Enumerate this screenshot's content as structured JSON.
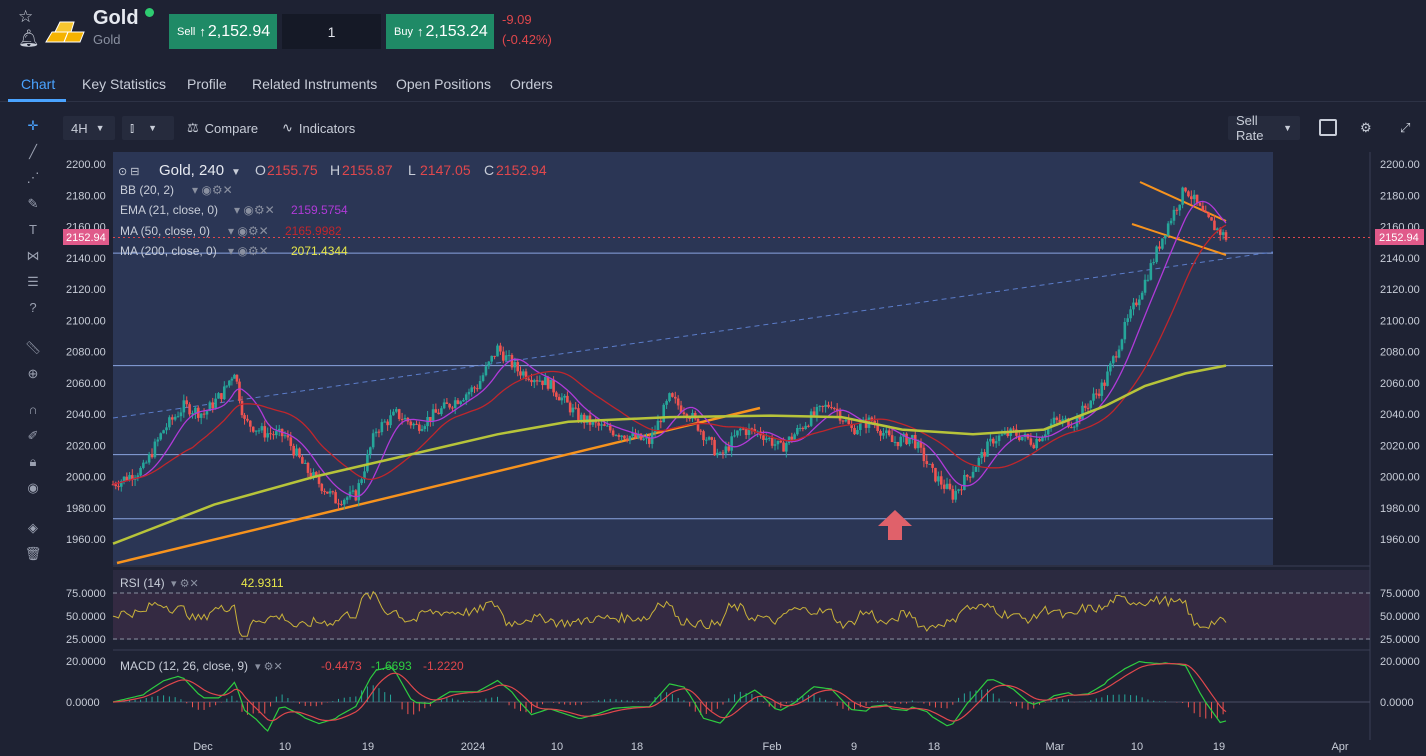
{
  "instrument": {
    "name": "Gold",
    "subtitle": "Gold",
    "status_color": "#2ecc71"
  },
  "trade": {
    "sell_label": "Sell",
    "sell_price": "2,152.94",
    "quantity": "1",
    "buy_label": "Buy",
    "buy_price": "2,153.24",
    "change": "-9.09",
    "change_pct": "(-0.42%)",
    "arrow_icon": "up-arrow-icon"
  },
  "tabs": [
    "Chart",
    "Key Statistics",
    "Profile",
    "Related Instruments",
    "Open Positions",
    "Orders"
  ],
  "toolbar": {
    "interval": "4H",
    "compare": "Compare",
    "indicators": "Indicators",
    "rate_mode": "Sell Rate"
  },
  "legend": {
    "symbol": "Gold, 240",
    "o_label": "O",
    "o": "2155.75",
    "h_label": "H",
    "h": "2155.87",
    "l_label": "L",
    "l": "2147.05",
    "c_label": "C",
    "c": "2152.94",
    "bb": "BB (20, 2)",
    "ema": "EMA (21, close, 0)",
    "ema_value": "2159.5754",
    "ma50": "MA (50, close, 0)",
    "ma50_value": "2165.9982",
    "ma200": "MA (200, close, 0)",
    "ma200_value": "2071.4344",
    "current_price_tag": "2152.94"
  },
  "rsi": {
    "label": "RSI (14)",
    "value": "42.9311",
    "ticks": [
      "75.0000",
      "50.0000",
      "25.0000"
    ]
  },
  "macd": {
    "label": "MACD (12, 26, close, 9)",
    "v1": "-0.4473",
    "v2": "-1.6693",
    "v3": "-1.2220",
    "ticks": [
      "20.0000",
      "0.0000"
    ]
  },
  "colors": {
    "bull": "#26a69a",
    "bear": "#ef5350",
    "ema": "#b03ad8",
    "ma50": "#c0262c",
    "ma200": "#b7c43a",
    "trend": "#f7931e",
    "accent": "#4aa3ff"
  },
  "chart_data": {
    "type": "line",
    "title": "Gold, 240",
    "x_tick_labels": [
      "Dec",
      "10",
      "19",
      "2024",
      "10",
      "18",
      "Feb",
      "9",
      "18",
      "Mar",
      "10",
      "19",
      "Apr"
    ],
    "y_tick_labels": [
      "2200.00",
      "2180.00",
      "2160.00",
      "2140.00",
      "2120.00",
      "2100.00",
      "2080.00",
      "2060.00",
      "2040.00",
      "2020.00",
      "2000.00",
      "1980.00",
      "1960.00"
    ],
    "ylim": [
      1947,
      2203
    ],
    "series": [
      {
        "name": "Gold, 240",
        "x": [
          0,
          3,
          5,
          7,
          9,
          11,
          12,
          13,
          15,
          17,
          19,
          22,
          24,
          26,
          28,
          30,
          33,
          36,
          38,
          40,
          43,
          46,
          48,
          50,
          53,
          55,
          57,
          60,
          62,
          64,
          66,
          69,
          71,
          73,
          75,
          77,
          79,
          81,
          83,
          85,
          87,
          89,
          91,
          93,
          95,
          98,
          100,
          102,
          104,
          106,
          108,
          110
        ],
        "values": [
          1995,
          2005,
          2030,
          2045,
          2040,
          2055,
          2068,
          2035,
          2028,
          2026,
          2005,
          1985,
          1988,
          2030,
          2040,
          2032,
          2045,
          2058,
          2082,
          2068,
          2060,
          2038,
          2032,
          2028,
          2022,
          2050,
          2040,
          2012,
          2030,
          2028,
          2018,
          2038,
          2047,
          2030,
          2036,
          2022,
          2025,
          2002,
          1988,
          2005,
          2024,
          2028,
          2022,
          2035,
          2035,
          2060,
          2095,
          2125,
          2158,
          2185,
          2165,
          2153
        ]
      },
      {
        "name": "MA (200, close, 0)",
        "x": [
          0,
          10,
          20,
          30,
          38,
          45,
          55,
          65,
          72,
          78,
          85,
          92,
          98,
          102,
          106,
          110
        ],
        "values": [
          1957,
          1982,
          2000,
          2015,
          2027,
          2035,
          2038,
          2039,
          2038,
          2030,
          2027,
          2030,
          2045,
          2058,
          2066,
          2071
        ]
      }
    ],
    "annotations": [
      "2152.94"
    ]
  }
}
